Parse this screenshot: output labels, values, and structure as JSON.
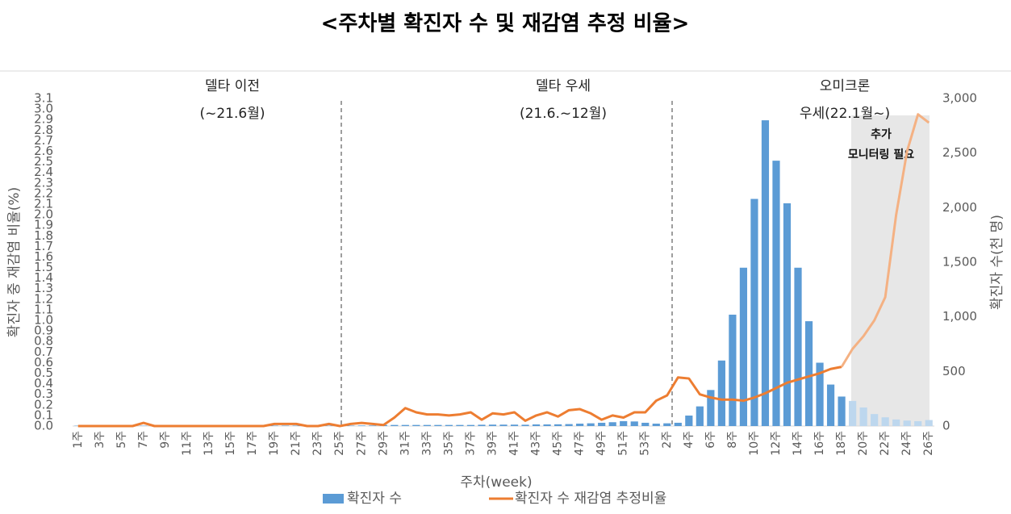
{
  "chart_data": {
    "type": "combo",
    "title": "<주차별 확진자 수 및 재감염 추정 비율>",
    "y_label": "확진자 중 재감염 비율(%)",
    "y2_label": "확진자 수(천 명)",
    "x_label": "주차(week)",
    "annotations": [
      "델타 이전",
      "(~21.6월)",
      "델타 우세",
      "(21.6.~12월)",
      "오미크론",
      "우세(22.1월~)",
      "추가",
      "모니터링 필요"
    ],
    "categories": [
      "1주",
      null,
      "3주",
      null,
      "5주",
      null,
      "7주",
      null,
      "9주",
      null,
      "11주",
      null,
      "13주",
      null,
      "15주",
      null,
      "17주",
      null,
      "19주",
      null,
      "21주",
      null,
      "23주",
      null,
      "25주",
      null,
      "27주",
      null,
      "29주",
      null,
      "31주",
      null,
      "33주",
      null,
      "35주",
      null,
      "37주",
      null,
      "39주",
      null,
      "41주",
      null,
      "43주",
      null,
      "45주",
      null,
      "47주",
      null,
      "49주",
      null,
      "51주",
      null,
      "53주",
      null,
      "2주",
      null,
      "4주",
      null,
      "6주",
      null,
      "8주",
      null,
      "10주",
      null,
      "12주",
      null,
      "14주",
      null,
      "16주",
      null,
      "18주",
      null,
      "20주",
      null,
      "22주",
      null,
      "24주",
      null,
      "26주"
    ],
    "series": [
      {
        "name": "확진자 수",
        "type": "bar",
        "axis": "y2",
        "color": "#5b9bd5",
        "colors": [
          "#5b9bd5",
          "#5b9bd5",
          "#5b9bd5",
          "#5b9bd5",
          "#5b9bd5",
          "#5b9bd5",
          "#5b9bd5",
          "#5b9bd5",
          "#5b9bd5",
          "#5b9bd5",
          "#5b9bd5",
          "#5b9bd5",
          "#5b9bd5",
          "#5b9bd5",
          "#5b9bd5",
          "#5b9bd5",
          "#5b9bd5",
          "#5b9bd5",
          "#5b9bd5",
          "#5b9bd5",
          "#5b9bd5",
          "#5b9bd5",
          "#5b9bd5",
          "#5b9bd5",
          "#5b9bd5",
          "#5b9bd5",
          "#5b9bd5",
          "#5b9bd5",
          "#5b9bd5",
          "#5b9bd5",
          "#5b9bd5",
          "#5b9bd5",
          "#5b9bd5",
          "#5b9bd5",
          "#5b9bd5",
          "#5b9bd5",
          "#5b9bd5",
          "#5b9bd5",
          "#5b9bd5",
          "#5b9bd5",
          "#5b9bd5",
          "#5b9bd5",
          "#5b9bd5",
          "#5b9bd5",
          "#5b9bd5",
          "#5b9bd5",
          "#5b9bd5",
          "#5b9bd5",
          "#5b9bd5",
          "#5b9bd5",
          "#5b9bd5",
          "#5b9bd5",
          "#5b9bd5",
          "#5b9bd5",
          "#5b9bd5",
          "#5b9bd5",
          "#5b9bd5",
          "#5b9bd5",
          "#5b9bd5",
          "#5b9bd5",
          "#5b9bd5",
          "#5b9bd5",
          "#5b9bd5",
          "#5b9bd5",
          "#5b9bd5",
          "#5b9bd5",
          "#5b9bd5",
          "#5b9bd5",
          "#5b9bd5",
          "#5b9bd5",
          "#5b9bd5",
          "#bdd7ee",
          "#bdd7ee",
          "#bdd7ee",
          "#bdd7ee",
          "#bdd7ee",
          "#bdd7ee",
          "#bdd7ee",
          "#bdd7ee"
        ],
        "values": [
          3,
          3,
          2,
          2,
          3,
          3,
          3,
          2,
          3,
          3,
          3,
          3,
          3,
          3,
          4,
          4,
          4,
          4,
          4,
          4,
          4,
          4,
          4,
          3,
          4,
          4,
          5,
          5,
          10,
          10,
          10,
          10,
          10,
          10,
          10,
          10,
          10,
          12,
          13,
          13,
          13,
          12,
          15,
          15,
          16,
          18,
          22,
          25,
          30,
          35,
          45,
          42,
          30,
          22,
          25,
          30,
          96,
          180,
          330,
          600,
          1020,
          1450,
          2080,
          2800,
          2430,
          2040,
          1450,
          960,
          580,
          380,
          270,
          230,
          170,
          110,
          80,
          60,
          50,
          45,
          55
        ]
      },
      {
        "name": "확진자 수 재감염 추정비율",
        "type": "line",
        "axis": "y",
        "color": "#ed7d31",
        "colors": [
          "#ed7d31",
          "#ed7d31",
          "#ed7d31",
          "#ed7d31",
          "#ed7d31",
          "#ed7d31",
          "#ed7d31",
          "#ed7d31",
          "#ed7d31",
          "#ed7d31",
          "#ed7d31",
          "#ed7d31",
          "#ed7d31",
          "#ed7d31",
          "#ed7d31",
          "#ed7d31",
          "#ed7d31",
          "#ed7d31",
          "#ed7d31",
          "#ed7d31",
          "#ed7d31",
          "#ed7d31",
          "#ed7d31",
          "#ed7d31",
          "#ed7d31",
          "#ed7d31",
          "#ed7d31",
          "#ed7d31",
          "#ed7d31",
          "#ed7d31",
          "#ed7d31",
          "#ed7d31",
          "#ed7d31",
          "#ed7d31",
          "#ed7d31",
          "#ed7d31",
          "#ed7d31",
          "#ed7d31",
          "#ed7d31",
          "#ed7d31",
          "#ed7d31",
          "#ed7d31",
          "#ed7d31",
          "#ed7d31",
          "#ed7d31",
          "#ed7d31",
          "#ed7d31",
          "#ed7d31",
          "#ed7d31",
          "#ed7d31",
          "#ed7d31",
          "#ed7d31",
          "#ed7d31",
          "#ed7d31",
          "#ed7d31",
          "#ed7d31",
          "#ed7d31",
          "#ed7d31",
          "#ed7d31",
          "#ed7d31",
          "#ed7d31",
          "#ed7d31",
          "#ed7d31",
          "#ed7d31",
          "#ed7d31",
          "#ed7d31",
          "#ed7d31",
          "#ed7d31",
          "#ed7d31",
          "#ed7d31",
          "#ed7d31",
          "#f4b183",
          "#f4b183",
          "#f4b183",
          "#f4b183",
          "#f4b183",
          "#f4b183",
          "#f4b183",
          "#f4b183"
        ],
        "values": [
          0,
          0,
          0,
          0,
          0,
          0,
          0.03,
          0,
          0,
          0,
          0,
          0,
          0,
          0,
          0,
          0,
          0,
          0,
          0.02,
          0.02,
          0.02,
          0,
          0,
          0.02,
          0,
          0.02,
          0.03,
          0.02,
          0.01,
          0.08,
          0.17,
          0.13,
          0.11,
          0.11,
          0.1,
          0.11,
          0.13,
          0.06,
          0.12,
          0.11,
          0.13,
          0.05,
          0.1,
          0.13,
          0.09,
          0.15,
          0.16,
          0.12,
          0.06,
          0.1,
          0.08,
          0.13,
          0.13,
          0.24,
          0.29,
          0.46,
          0.45,
          0.3,
          0.27,
          0.25,
          0.25,
          0.24,
          0.27,
          0.31,
          0.36,
          0.41,
          0.44,
          0.47,
          0.5,
          0.54,
          0.56,
          0.73,
          0.85,
          1.0,
          1.22,
          2.0,
          2.6,
          2.95,
          2.87
        ]
      }
    ],
    "ylim": [
      0,
      3.1
    ],
    "yticks": [
      {
        "value": 0,
        "label": "0.0"
      },
      0.1,
      0.2,
      0.3,
      0.4,
      0.5,
      0.6,
      0.7,
      0.8,
      0.9,
      {
        "value": 1,
        "label": "1.0"
      },
      1.1,
      1.2,
      1.3,
      1.4,
      1.5,
      1.6,
      1.7,
      1.8,
      1.9,
      {
        "value": 2,
        "label": "2.0"
      },
      2.1,
      2.2,
      2.3,
      2.4,
      2.5,
      2.6,
      2.7,
      2.8,
      2.9,
      {
        "value": 3,
        "label": "3.0"
      },
      3.1
    ],
    "y2lim": [
      0,
      3000
    ],
    "y2ticks": [
      0,
      500,
      {
        "value": 1000,
        "label": "1,000"
      },
      {
        "value": 1500,
        "label": "1,500"
      },
      {
        "value": 2000,
        "label": "2,000"
      },
      {
        "value": 2500,
        "label": "2,500"
      },
      {
        "value": 3000,
        "label": "3,000"
      }
    ],
    "legend": "bottom"
  }
}
